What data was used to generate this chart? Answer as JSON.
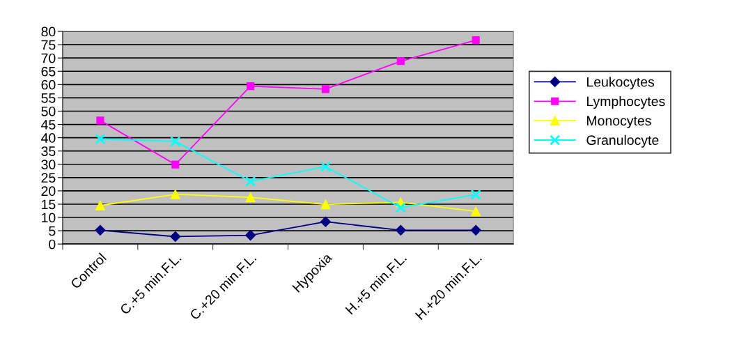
{
  "chart_data": {
    "type": "line",
    "categories": [
      "Control",
      "C.+5 min.F.L.",
      "C.+20 min.F.L.",
      "Hypoxia",
      "H.+5 min.F.L.",
      "H.+20 min.F.L."
    ],
    "series": [
      {
        "name": "Leukocytes",
        "color": "#000080",
        "marker": "diamond",
        "values": [
          5.2,
          2.8,
          3.3,
          8.4,
          5.2,
          5.2
        ]
      },
      {
        "name": "Lymphocytes",
        "color": "#ff00ff",
        "marker": "square",
        "values": [
          46.5,
          29.9,
          59.4,
          58.3,
          68.8,
          76.7
        ]
      },
      {
        "name": "Monocytes",
        "color": "#ffff00",
        "marker": "triangle",
        "values": [
          14.5,
          18.7,
          17.6,
          14.9,
          15.7,
          12.3
        ]
      },
      {
        "name": "Granulocyte",
        "color": "#00ffff",
        "marker": "cross",
        "values": [
          39.5,
          38.6,
          23.6,
          29.1,
          13.7,
          18.6
        ]
      }
    ],
    "ylim": [
      0,
      80
    ],
    "yticks": [
      0,
      5,
      10,
      15,
      20,
      25,
      30,
      35,
      40,
      45,
      50,
      55,
      60,
      65,
      70,
      75,
      80
    ],
    "grid": "y",
    "legend": "right",
    "line_style": "solid"
  }
}
